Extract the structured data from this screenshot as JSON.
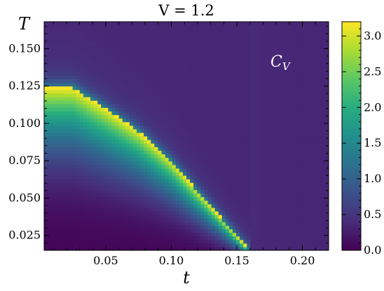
{
  "chart_data": {
    "type": "heatmap",
    "title": "V = 1.2",
    "xlabel": "t",
    "ylabel": "T",
    "xlim": [
      0.003,
      0.22
    ],
    "ylim": [
      0.015,
      0.168
    ],
    "x_ticks": [
      "0.05",
      "0.10",
      "0.15",
      "0.20"
    ],
    "x_tick_values": [
      0.05,
      0.1,
      0.15,
      0.2
    ],
    "y_ticks": [
      "0.025",
      "0.050",
      "0.075",
      "0.100",
      "0.125",
      "0.150"
    ],
    "y_tick_values": [
      0.025,
      0.05,
      0.075,
      0.1,
      0.125,
      0.15
    ],
    "annotation": {
      "main": "C",
      "sub": "V"
    },
    "colorbar": {
      "range": [
        0,
        3.2
      ],
      "ticks": [
        "0.0",
        "0.5",
        "1.0",
        "1.5",
        "2.0",
        "2.5",
        "3.0"
      ],
      "tick_values": [
        0.0,
        0.5,
        1.0,
        1.5,
        2.0,
        2.5,
        3.0
      ],
      "colormap": "viridis"
    },
    "boundary": {
      "t": [
        0.003,
        0.025,
        0.05,
        0.075,
        0.1,
        0.125,
        0.15,
        0.16
      ],
      "T": [
        0.124,
        0.124,
        0.11,
        0.095,
        0.075,
        0.05,
        0.025,
        0.015
      ]
    },
    "peak_value": 3.2,
    "background_value": 0.35
  }
}
